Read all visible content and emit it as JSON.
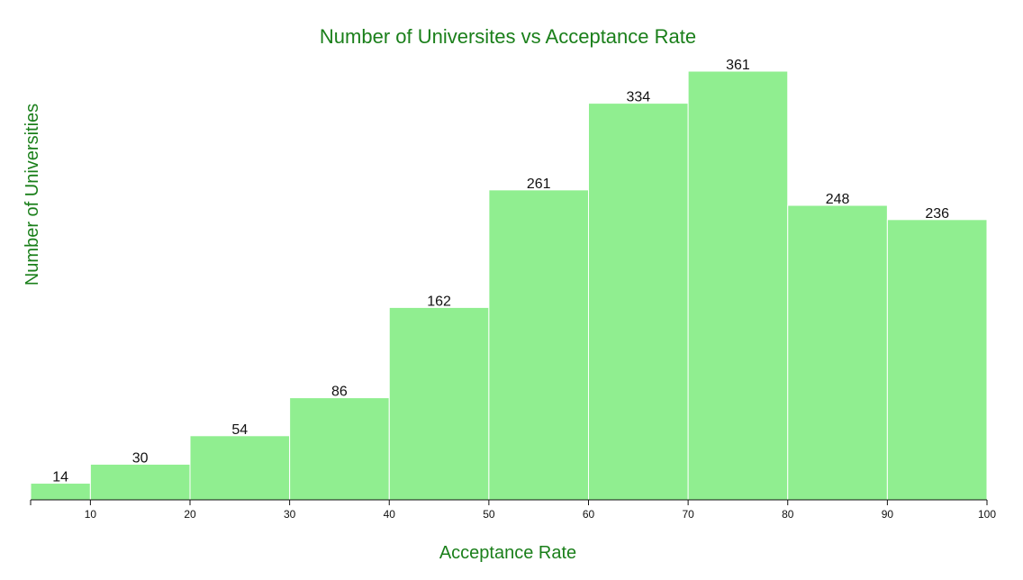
{
  "chart_data": {
    "type": "bar",
    "title": "Number of Universites vs Acceptance Rate",
    "xlabel": "Acceptance Rate",
    "ylabel": "Number of Universities",
    "bins": [
      {
        "x0": 4,
        "x1": 10,
        "value": 14
      },
      {
        "x0": 10,
        "x1": 20,
        "value": 30
      },
      {
        "x0": 20,
        "x1": 30,
        "value": 54
      },
      {
        "x0": 30,
        "x1": 40,
        "value": 86
      },
      {
        "x0": 40,
        "x1": 50,
        "value": 162
      },
      {
        "x0": 50,
        "x1": 60,
        "value": 261
      },
      {
        "x0": 60,
        "x1": 70,
        "value": 334
      },
      {
        "x0": 70,
        "x1": 80,
        "value": 361
      },
      {
        "x0": 80,
        "x1": 90,
        "value": 248
      },
      {
        "x0": 90,
        "x1": 100,
        "value": 236
      }
    ],
    "xlim": [
      4,
      100
    ],
    "ylim": [
      0,
      361
    ],
    "x_ticks": [
      "10",
      "20",
      "30",
      "40",
      "50",
      "60",
      "70",
      "80",
      "90",
      "100"
    ],
    "grid": false,
    "colors": {
      "bar_fill": "#90ee90",
      "bar_stroke": "#ffffff",
      "title": "#1a7f1a",
      "axis_title": "#1a7f1a",
      "axis": "#111111"
    }
  }
}
